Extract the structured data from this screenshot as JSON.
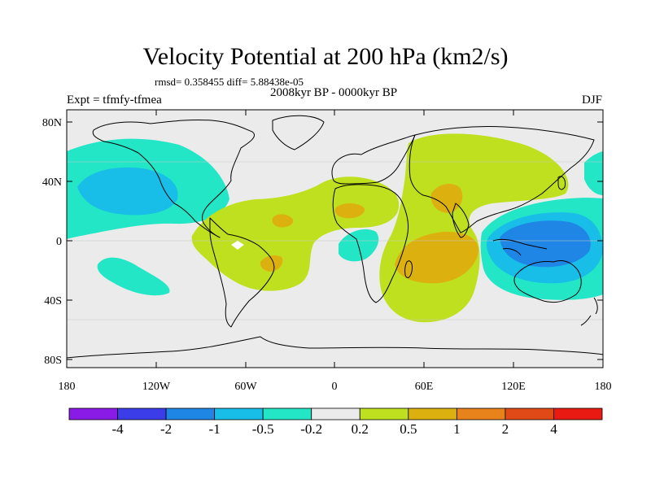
{
  "header": {
    "title": "Velocity Potential at 200 hPa (km2/s)",
    "stats": "rmsd= 0.358455 diff= 5.88438e-05",
    "period": "2008kyr BP - 0000kyr BP",
    "expt": "Expt = tfmfy-tfmea",
    "season": "DJF"
  },
  "map": {
    "lat_ticks": [
      "80N",
      "40N",
      "0",
      "40S",
      "80S"
    ],
    "lon_ticks": [
      "180",
      "120W",
      "60W",
      "0",
      "60E",
      "120E",
      "180"
    ]
  },
  "colorbar": {
    "labels": [
      "-4",
      "-2",
      "-1",
      "-0.5",
      "-0.2",
      "0.2",
      "0.5",
      "1",
      "2",
      "4"
    ],
    "colors": [
      "#8a1ae6",
      "#3b3ee8",
      "#1f86e6",
      "#18bde8",
      "#22e6c6",
      "#ebebeb",
      "#bfe01e",
      "#dcb10f",
      "#e8821b",
      "#e04a16",
      "#e81a12"
    ]
  },
  "colors": {
    "background": "#ebebeb",
    "coast": "#000000"
  }
}
